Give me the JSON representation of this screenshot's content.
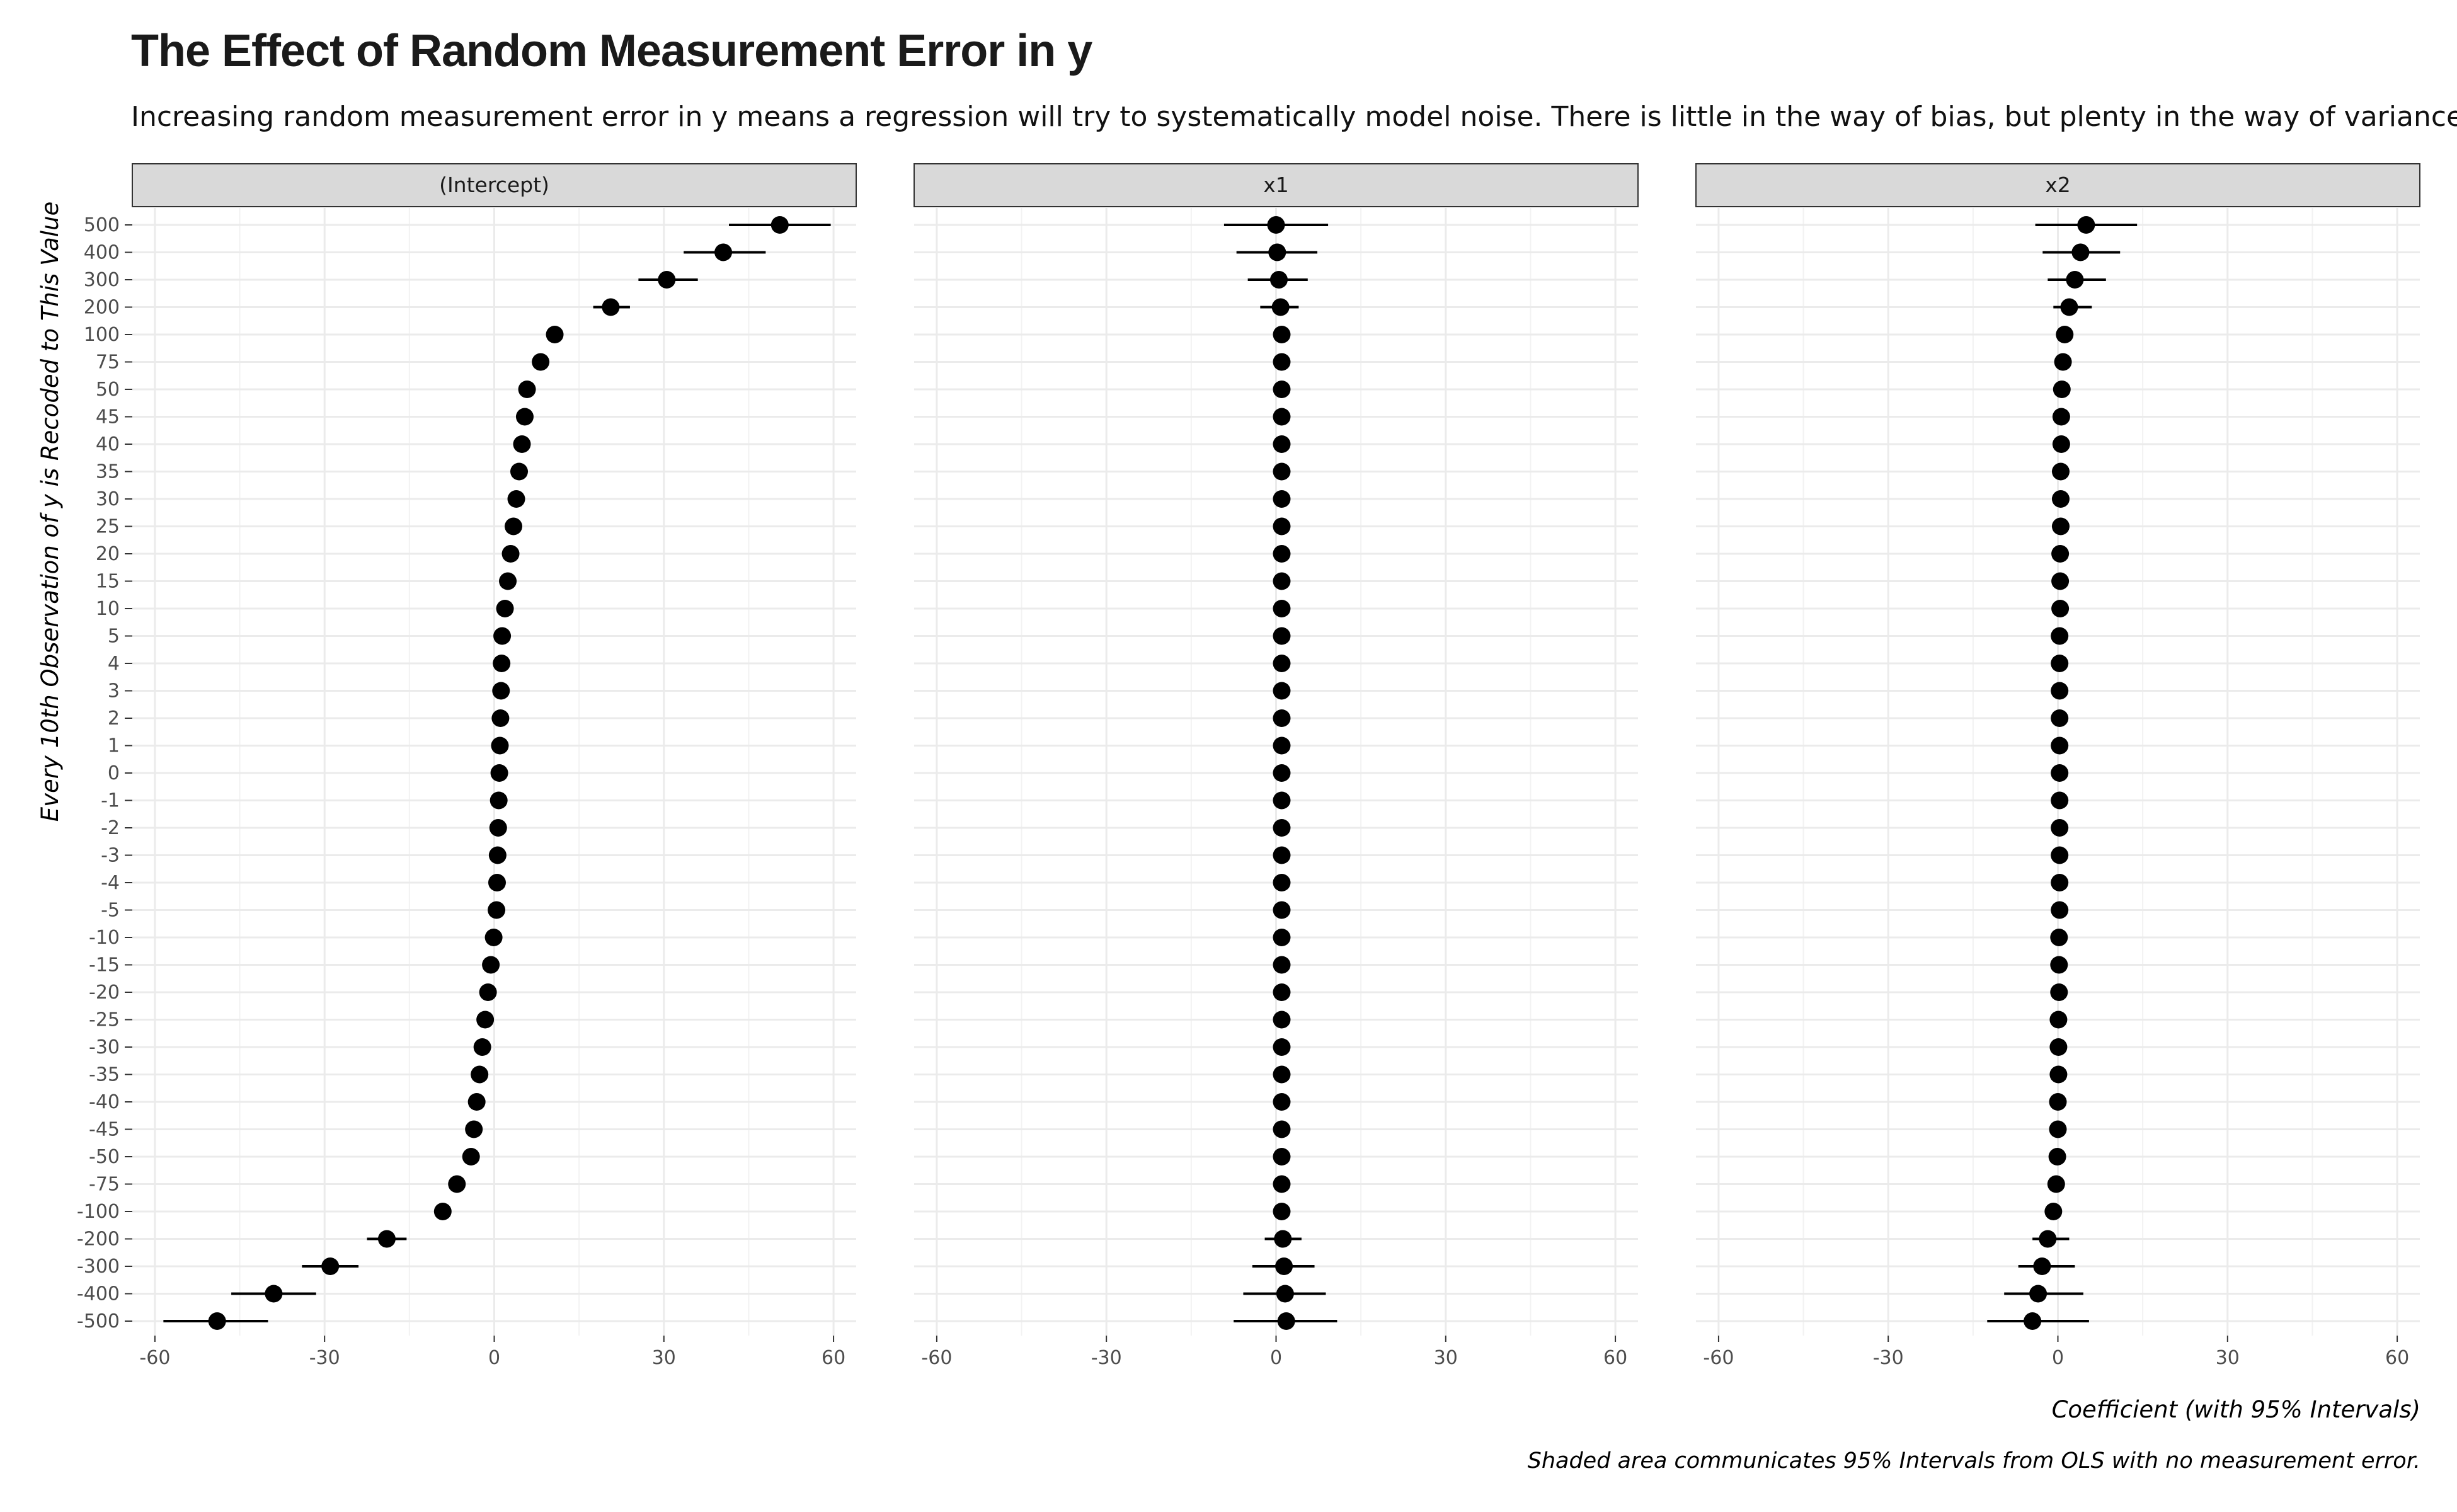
{
  "title": "The Effect of Random Measurement Error in y",
  "subtitle": "Increasing random measurement error in y means a regression will try to systematically model noise. There is little in the way of bias, but plenty in the way of variance.",
  "caption": "Shaded area communicates 95% Intervals from OLS with no measurement error.",
  "chart_data": {
    "type": "scatter",
    "subtype": "faceted coefficient (point-range) plot",
    "xlabel": "Coefficient (with 95% Intervals)",
    "ylabel": "Every 10th Observation of y is Recoded to This Value",
    "xlim": [
      -64,
      64
    ],
    "x_ticks": [
      -60,
      -30,
      0,
      30,
      60
    ],
    "x_tick_labels": [
      "-60",
      "-30",
      "0",
      "30",
      "60"
    ],
    "grid": true,
    "categories": [
      "500",
      "400",
      "300",
      "200",
      "100",
      "75",
      "50",
      "45",
      "40",
      "35",
      "30",
      "25",
      "20",
      "15",
      "10",
      "5",
      "4",
      "3",
      "2",
      "1",
      "0",
      "-1",
      "-2",
      "-3",
      "-4",
      "-5",
      "-10",
      "-15",
      "-20",
      "-25",
      "-30",
      "-35",
      "-40",
      "-45",
      "-50",
      "-75",
      "-100",
      "-200",
      "-300",
      "-400",
      "-500"
    ],
    "facets": [
      {
        "name": "(Intercept)",
        "estimate": [
          50.5,
          40.5,
          30.5,
          20.6,
          10.7,
          8.2,
          5.8,
          5.4,
          4.9,
          4.4,
          3.9,
          3.4,
          2.9,
          2.4,
          1.9,
          1.4,
          1.3,
          1.2,
          1.1,
          1.0,
          0.9,
          0.8,
          0.7,
          0.6,
          0.5,
          0.4,
          -0.1,
          -0.6,
          -1.1,
          -1.6,
          -2.1,
          -2.6,
          -3.1,
          -3.6,
          -4.1,
          -6.6,
          -9.1,
          -19.0,
          -29.0,
          -39.0,
          -49.0
        ],
        "lower": [
          41.5,
          33.5,
          25.5,
          17.5,
          9.5,
          7.2,
          5.0,
          4.6,
          4.1,
          3.6,
          3.1,
          2.6,
          2.1,
          1.6,
          1.1,
          0.6,
          0.5,
          0.4,
          0.3,
          0.2,
          0.1,
          0.0,
          -0.1,
          -0.2,
          -0.3,
          -0.4,
          -0.9,
          -1.4,
          -1.9,
          -2.4,
          -2.9,
          -3.4,
          -3.9,
          -4.4,
          -4.9,
          -7.5,
          -10.3,
          -22.5,
          -34.0,
          -46.5,
          -58.5
        ],
        "upper": [
          59.5,
          48.0,
          36.0,
          24.0,
          12.0,
          9.2,
          6.6,
          6.2,
          5.7,
          5.2,
          4.7,
          4.2,
          3.7,
          3.2,
          2.7,
          2.2,
          2.1,
          2.0,
          1.9,
          1.8,
          1.7,
          1.6,
          1.5,
          1.4,
          1.3,
          1.2,
          0.7,
          0.2,
          -0.3,
          -0.8,
          -1.3,
          -1.8,
          -2.3,
          -2.8,
          -3.3,
          -5.7,
          -7.9,
          -15.5,
          -24.0,
          -31.5,
          -40.0
        ]
      },
      {
        "name": "x1",
        "estimate": [
          0.0,
          0.2,
          0.5,
          0.8,
          1.0,
          1.0,
          1.0,
          1.0,
          1.0,
          1.0,
          1.0,
          1.0,
          1.0,
          1.0,
          1.0,
          1.0,
          1.0,
          1.0,
          1.0,
          1.0,
          1.0,
          1.0,
          1.0,
          1.0,
          1.0,
          1.0,
          1.0,
          1.0,
          1.0,
          1.0,
          1.0,
          1.0,
          1.0,
          1.0,
          1.0,
          1.0,
          1.0,
          1.2,
          1.4,
          1.6,
          1.8
        ],
        "lower": [
          -9.2,
          -7.0,
          -5.0,
          -2.8,
          0.2,
          0.2,
          0.2,
          0.2,
          0.2,
          0.2,
          0.2,
          0.2,
          0.2,
          0.2,
          0.2,
          0.2,
          0.2,
          0.2,
          0.2,
          0.2,
          0.2,
          0.2,
          0.2,
          0.2,
          0.2,
          0.2,
          0.2,
          0.2,
          0.2,
          0.2,
          0.2,
          0.2,
          0.2,
          0.2,
          0.2,
          0.2,
          0.2,
          -2.0,
          -4.2,
          -5.8,
          -7.5
        ],
        "upper": [
          9.2,
          7.3,
          5.6,
          4.0,
          1.8,
          1.8,
          1.8,
          1.8,
          1.8,
          1.8,
          1.8,
          1.8,
          1.8,
          1.8,
          1.8,
          1.8,
          1.8,
          1.8,
          1.8,
          1.8,
          1.8,
          1.8,
          1.8,
          1.8,
          1.8,
          1.8,
          1.8,
          1.8,
          1.8,
          1.8,
          1.8,
          1.8,
          1.8,
          1.8,
          1.8,
          1.8,
          1.8,
          4.5,
          6.8,
          8.8,
          10.8
        ]
      },
      {
        "name": "x2",
        "estimate": [
          5.0,
          4.0,
          3.0,
          2.0,
          1.2,
          0.9,
          0.7,
          0.6,
          0.6,
          0.5,
          0.5,
          0.5,
          0.4,
          0.4,
          0.4,
          0.3,
          0.3,
          0.3,
          0.3,
          0.3,
          0.3,
          0.3,
          0.3,
          0.3,
          0.3,
          0.3,
          0.2,
          0.2,
          0.2,
          0.1,
          0.1,
          0.1,
          0.0,
          0.0,
          -0.1,
          -0.3,
          -0.8,
          -1.8,
          -2.8,
          -3.5,
          -4.5
        ],
        "lower": [
          -4.0,
          -2.7,
          -1.8,
          -0.8,
          0.4,
          0.1,
          -0.1,
          -0.2,
          -0.2,
          -0.3,
          -0.3,
          -0.3,
          -0.4,
          -0.4,
          -0.4,
          -0.5,
          -0.5,
          -0.5,
          -0.5,
          -0.5,
          -0.5,
          -0.5,
          -0.5,
          -0.5,
          -0.5,
          -0.5,
          -0.6,
          -0.6,
          -0.6,
          -0.7,
          -0.7,
          -0.7,
          -0.8,
          -0.8,
          -0.9,
          -1.1,
          -1.6,
          -4.5,
          -7.0,
          -9.5,
          -12.5
        ],
        "upper": [
          14.0,
          11.0,
          8.5,
          6.0,
          2.0,
          1.7,
          1.5,
          1.4,
          1.4,
          1.3,
          1.3,
          1.3,
          1.2,
          1.2,
          1.2,
          1.1,
          1.1,
          1.1,
          1.1,
          1.1,
          1.1,
          1.1,
          1.1,
          1.1,
          1.1,
          1.1,
          1.0,
          1.0,
          1.0,
          0.9,
          0.9,
          0.9,
          0.8,
          0.8,
          0.7,
          0.5,
          0.0,
          2.0,
          3.0,
          4.5,
          5.5
        ]
      }
    ]
  }
}
